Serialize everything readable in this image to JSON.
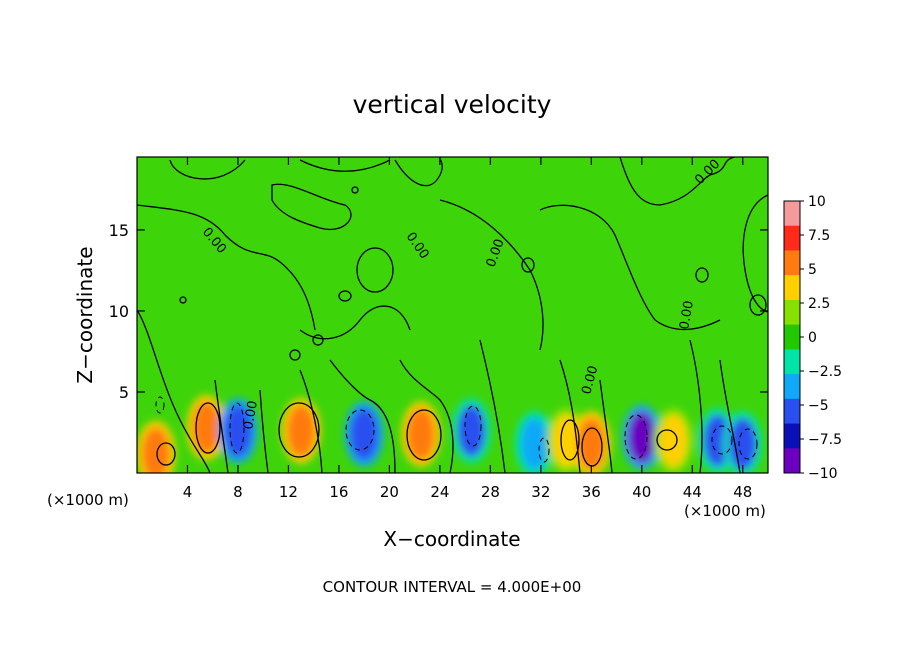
{
  "chart_data": {
    "type": "heatmap",
    "title": "vertical velocity",
    "xlabel": "X−coordinate",
    "ylabel": "Z−coordinate",
    "x_unit_left": "(×1000 m)",
    "x_unit_right": "(×1000 m)",
    "footnote": "CONTOUR INTERVAL = 4.000E+00",
    "xlim": [
      0,
      50
    ],
    "ylim": [
      0,
      19.5
    ],
    "x_ticks": [
      4,
      8,
      12,
      16,
      20,
      24,
      28,
      32,
      36,
      40,
      44,
      48
    ],
    "x_tick_labels": [
      "4",
      "8",
      "12",
      "16",
      "20",
      "24",
      "28",
      "32",
      "36",
      "40",
      "44",
      "48"
    ],
    "y_ticks": [
      5,
      10,
      15
    ],
    "y_tick_labels": [
      "5",
      "10",
      "15"
    ],
    "colorbar": {
      "range": [
        -10,
        10
      ],
      "ticks": [
        10,
        7.5,
        5,
        2.5,
        0,
        -2.5,
        -5,
        -7.5,
        -10
      ],
      "tick_labels": [
        "10",
        "7.5",
        "5",
        "2.5",
        "0",
        "−2.5",
        "−5",
        "−7.5",
        "−10"
      ],
      "colors": [
        "#f49a9a",
        "#ff2a1a",
        "#ff7a10",
        "#ffd000",
        "#88e000",
        "#22c800",
        "#00e4a8",
        "#10a8f8",
        "#2a4ff0",
        "#0a10b8",
        "#6a00c0"
      ]
    },
    "extrema": [
      {
        "x": 1.5,
        "z": 1.2,
        "value": 5.5
      },
      {
        "x": 5.5,
        "z": 2.8,
        "value": 6.5
      },
      {
        "x": 8.0,
        "z": 2.6,
        "value": -6.5
      },
      {
        "x": 13.0,
        "z": 2.6,
        "value": 6.5
      },
      {
        "x": 18.0,
        "z": 2.4,
        "value": -6.5
      },
      {
        "x": 22.5,
        "z": 2.4,
        "value": 6.0
      },
      {
        "x": 26.5,
        "z": 2.6,
        "value": -5.0
      },
      {
        "x": 31.5,
        "z": 1.8,
        "value": -4.5
      },
      {
        "x": 34.0,
        "z": 2.0,
        "value": 4.5
      },
      {
        "x": 36.0,
        "z": 1.8,
        "value": 6.5
      },
      {
        "x": 40.0,
        "z": 2.2,
        "value": -9.0
      },
      {
        "x": 42.5,
        "z": 2.0,
        "value": 3.5
      },
      {
        "x": 46.0,
        "z": 2.0,
        "value": -5.0
      },
      {
        "x": 48.0,
        "z": 1.8,
        "value": -5.0
      }
    ],
    "contour_labels": [
      "0.00",
      "0.00",
      "0.00",
      "0.00",
      "0.00",
      "0.00",
      "0.00"
    ]
  }
}
